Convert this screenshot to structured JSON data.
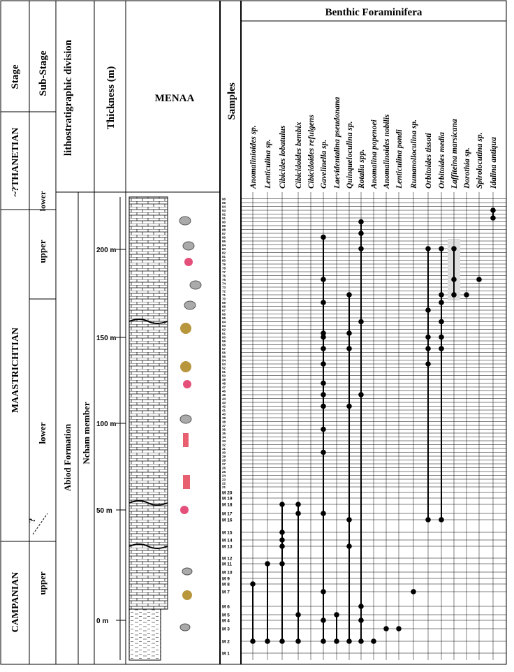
{
  "stage_header": "Stage",
  "substage_header": "Sub-Stage",
  "litho_header": "lithostratigraphic division",
  "thickness_header": "Thickness (m)",
  "section": "MENAA",
  "samples_header": "Samples",
  "taxa_header": "Benthic Foraminifera",
  "stages": [
    "~?THANETIAN",
    "MAASTRICHTIAN",
    "CAMPANIAN"
  ],
  "substages": [
    "lower",
    "upper",
    "lower",
    "?",
    "upper"
  ],
  "formation": "Abiod Formation",
  "member": "Ncham member",
  "thickness_ticks": [
    "0 m",
    "50 m",
    "100 m",
    "150 m",
    "200 m"
  ],
  "samples": [
    "M 1",
    "M 2",
    "M 3",
    "M 4",
    "M 5",
    "M 6",
    "M 7",
    "M 8",
    "M 9",
    "M 10",
    "M 11",
    "M 12",
    "M 13",
    "M 14",
    "M 15",
    "M 16",
    "M 17",
    "M 18",
    "M 19",
    "M 20",
    "21",
    "22",
    "23",
    "24",
    "25",
    "26",
    "27",
    "28",
    "29",
    "30",
    "31",
    "32",
    "33",
    "34",
    "35",
    "36",
    "37",
    "38",
    "39",
    "40",
    "41",
    "42",
    "43",
    "44",
    "45",
    "46",
    "47",
    "48",
    "49",
    "50",
    "51",
    "52",
    "53",
    "54",
    "55",
    "56",
    "57",
    "58",
    "59",
    "60",
    "61",
    "62",
    "63",
    "64",
    "65",
    "66",
    "67",
    "68",
    "69",
    "70",
    "71",
    "72",
    "73",
    "74",
    "75",
    "76",
    "77",
    "78",
    "79",
    "80",
    "81",
    "82",
    "83",
    "84",
    "85",
    "86",
    "87",
    "88",
    "89",
    "90",
    "91",
    "92",
    "93",
    "94",
    "95",
    "96"
  ],
  "taxa": [
    {
      "name": "Anomalinioides sp.",
      "samples": [
        2,
        8
      ]
    },
    {
      "name": "Lenticulina sp.",
      "samples": [
        2,
        11
      ]
    },
    {
      "name": "Cibicides lobatulus",
      "samples": [
        2,
        11,
        13,
        14,
        15,
        18
      ]
    },
    {
      "name": "Cibicidoides bembix",
      "samples": [
        2,
        5,
        17,
        18
      ]
    },
    {
      "name": "Cibicidoides refulgens",
      "samples": []
    },
    {
      "name": "Gavelinella sp.",
      "samples": [
        2,
        4,
        7,
        17,
        30,
        36,
        42,
        45,
        48,
        53,
        57,
        60,
        61,
        69,
        75,
        86
      ]
    },
    {
      "name": "Laevidentalina pseudonana",
      "samples": [
        2,
        5
      ]
    },
    {
      "name": "Quinqueloculina sp.",
      "samples": [
        2,
        13,
        16,
        42,
        57,
        61,
        71
      ]
    },
    {
      "name": "Rotalia spp.",
      "samples": [
        2,
        4,
        6,
        45,
        64,
        83,
        87,
        90
      ]
    },
    {
      "name": "Anomalina popenoei",
      "samples": [
        2
      ]
    },
    {
      "name": "Anomalinoides nobilis",
      "samples": [
        3
      ]
    },
    {
      "name": "Lenticulina pondi",
      "samples": [
        3
      ]
    },
    {
      "name": "Rumanolloculina sp.",
      "samples": [
        7
      ]
    },
    {
      "name": "Orbitoides tissoti",
      "samples": [
        16,
        53,
        57,
        60,
        67,
        83
      ]
    },
    {
      "name": "Orbitoides media",
      "samples": [
        16,
        57,
        60,
        64,
        69,
        71,
        83
      ]
    },
    {
      "name": "Laffiteina marsicana",
      "samples": [
        71,
        75,
        83
      ]
    },
    {
      "name": "Dorothia sp.",
      "samples": [
        71
      ]
    },
    {
      "name": "Spirolocutina sp.",
      "samples": [
        75
      ]
    },
    {
      "name": "Idalina antiqua",
      "samples": [
        91,
        93
      ]
    }
  ]
}
